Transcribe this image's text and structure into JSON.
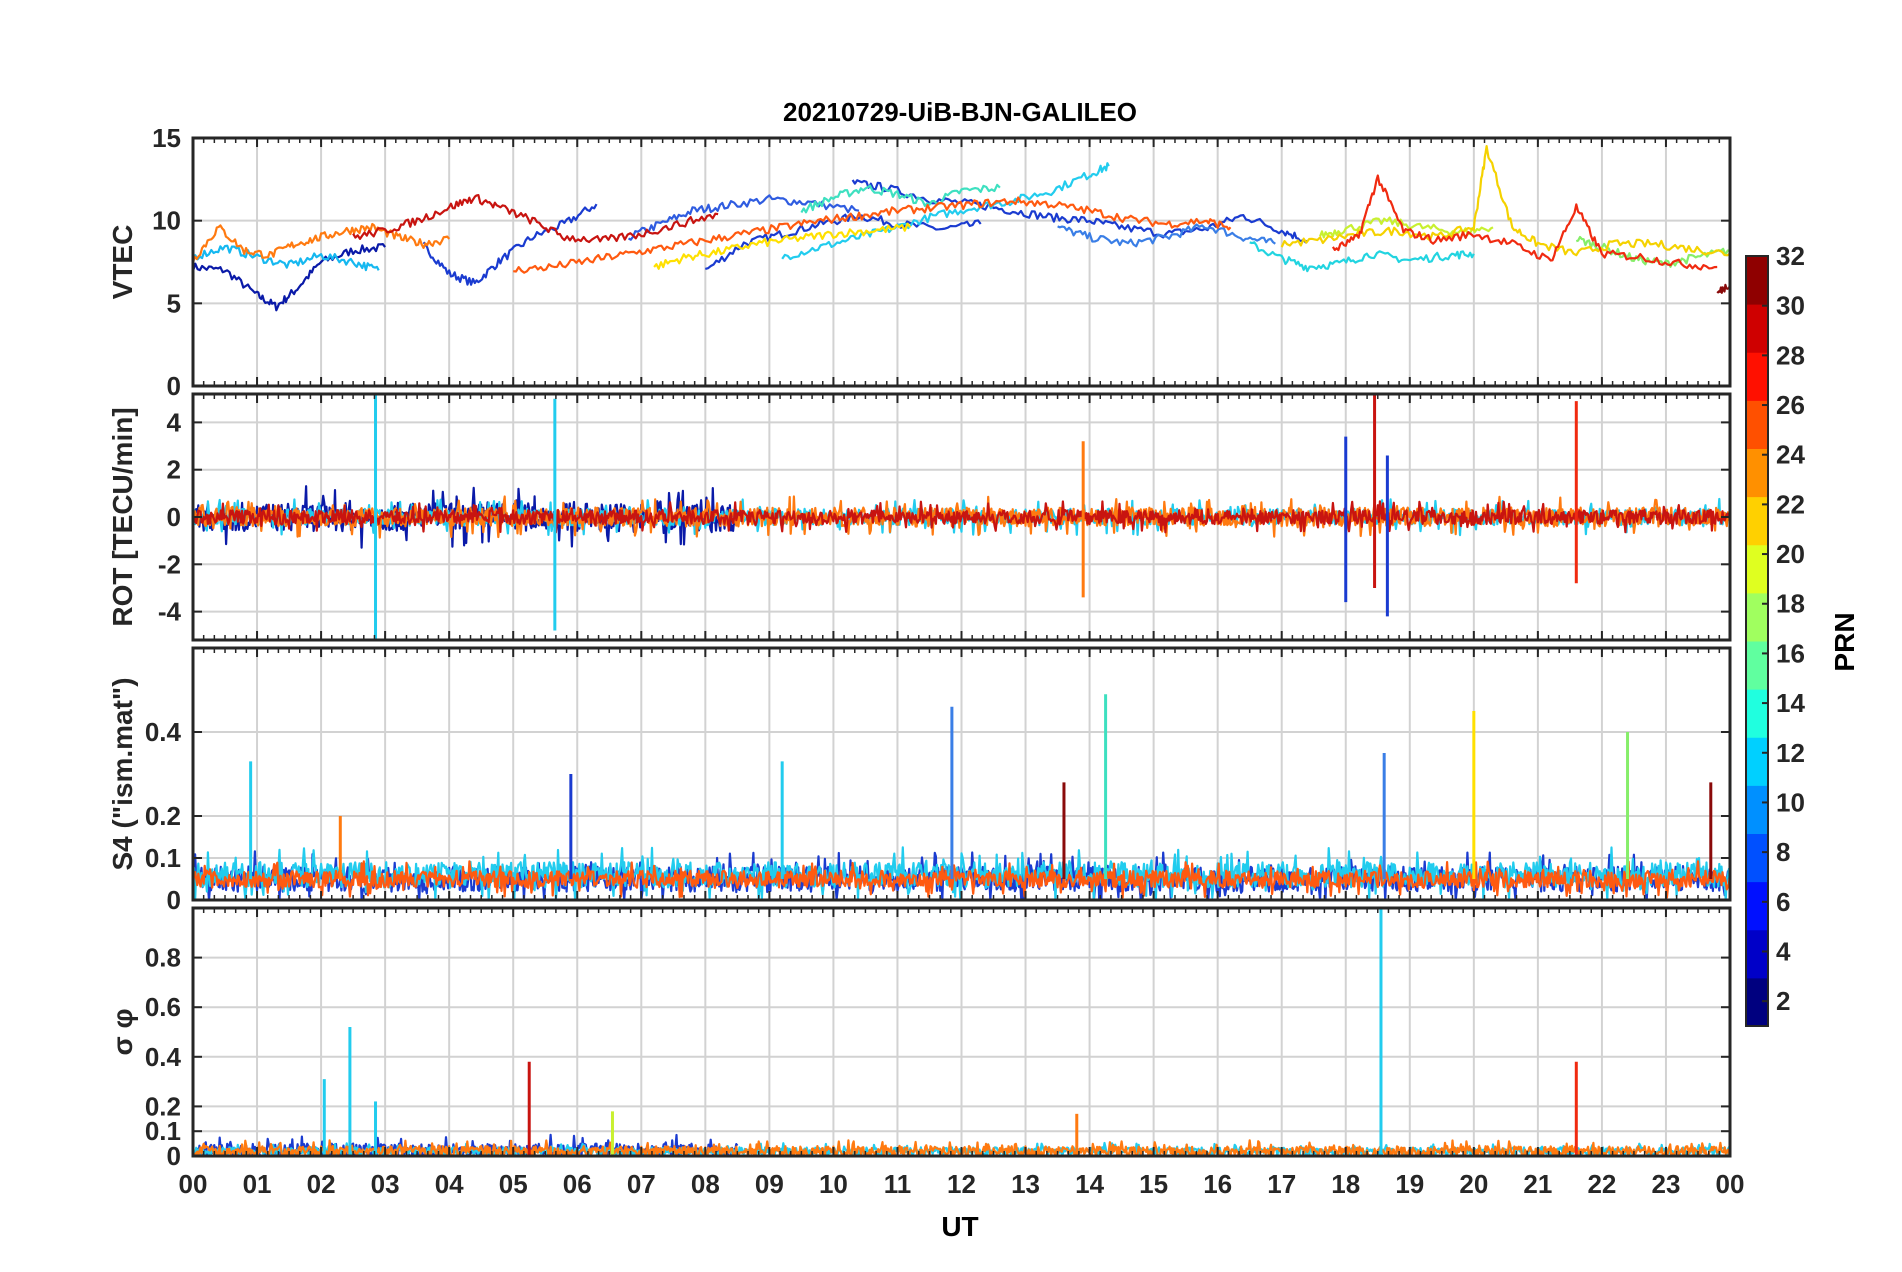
{
  "title": "20210729-UiB-BJN-GALILEO",
  "chart_data": [
    {
      "type": "line",
      "ylabel": "VTEC",
      "ylim": [
        0,
        15
      ],
      "yticks": [
        0,
        5,
        10,
        15
      ],
      "grid": true,
      "series": [
        {
          "prn": 2,
          "color": "#0a1aa8",
          "x": [
            0.0,
            0.5,
            1.0,
            1.3,
            1.6,
            2.0,
            2.5,
            3.0
          ],
          "y": [
            7.2,
            7.0,
            5.5,
            4.8,
            5.8,
            7.5,
            8.2,
            8.4
          ]
        },
        {
          "prn": 3,
          "color": "#1a3bd0",
          "x": [
            3.6,
            4.0,
            4.4,
            4.8,
            5.3,
            5.8,
            6.3
          ],
          "y": [
            8.5,
            6.8,
            6.2,
            7.6,
            9.0,
            9.8,
            11.0
          ]
        },
        {
          "prn": 4,
          "color": "#1a3bd0",
          "x": [
            8.0,
            8.6,
            9.2,
            9.8,
            10.4,
            11.0,
            11.7,
            12.3
          ],
          "y": [
            7.0,
            8.6,
            9.2,
            9.8,
            10.3,
            9.8,
            9.5,
            9.8
          ]
        },
        {
          "prn": 5,
          "color": "#2f5ce0",
          "x": [
            6.8,
            7.3,
            7.8,
            8.3,
            9.0,
            9.6,
            10.4
          ],
          "y": [
            9.0,
            9.8,
            10.6,
            10.9,
            11.3,
            11.1,
            10.6
          ]
        },
        {
          "prn": 6,
          "color": "#1a3bd0",
          "x": [
            10.3,
            10.8,
            11.5,
            12.2,
            12.8,
            13.4,
            14.0,
            14.5,
            15.2,
            15.8,
            16.4,
            17.0,
            17.4
          ],
          "y": [
            12.3,
            12.0,
            11.3,
            11.0,
            10.6,
            10.2,
            10.0,
            9.6,
            9.2,
            9.5,
            10.3,
            9.4,
            8.8
          ]
        },
        {
          "prn": 8,
          "color": "#3a7ee6",
          "x": [
            13.5,
            14.0,
            14.6,
            15.2,
            15.8,
            16.4,
            16.9
          ],
          "y": [
            9.6,
            9.0,
            8.6,
            9.0,
            9.7,
            9.0,
            8.6
          ]
        },
        {
          "prn": 11,
          "color": "#16b8f0",
          "x": [
            0.0,
            0.5,
            1.0,
            1.5,
            2.0,
            2.5,
            2.9
          ],
          "y": [
            7.8,
            8.4,
            7.8,
            7.3,
            7.9,
            7.5,
            7.0
          ]
        },
        {
          "prn": 12,
          "color": "#22ccee",
          "x": [
            9.2,
            9.8,
            10.4,
            11.0,
            11.6,
            12.2,
            12.8,
            13.4,
            14.0,
            14.3
          ],
          "y": [
            7.8,
            8.4,
            9.0,
            9.6,
            10.3,
            10.8,
            11.2,
            11.8,
            12.8,
            13.3
          ]
        },
        {
          "prn": 13,
          "color": "#22d4e0",
          "x": [
            16.5,
            17.0,
            17.4,
            17.9,
            18.4,
            19.0,
            19.6,
            20.0
          ],
          "y": [
            8.6,
            7.7,
            7.2,
            7.4,
            8.0,
            7.6,
            7.9,
            8.0
          ]
        },
        {
          "prn": 14,
          "color": "#3ee0c0",
          "x": [
            9.5,
            10.0,
            10.5,
            11.0,
            11.5,
            12.0,
            12.6
          ],
          "y": [
            10.6,
            11.4,
            12.0,
            11.6,
            11.0,
            11.8,
            12.0
          ]
        },
        {
          "prn": 17,
          "color": "#86ee6a",
          "x": [
            21.6,
            22.0,
            22.5,
            23.0,
            23.5,
            24.0
          ],
          "y": [
            8.9,
            8.4,
            7.7,
            7.4,
            7.8,
            8.2
          ]
        },
        {
          "prn": 19,
          "color": "#c8f030",
          "x": [
            17.6,
            18.0,
            18.6,
            19.2,
            19.8,
            20.3
          ],
          "y": [
            9.1,
            9.5,
            10.0,
            9.6,
            9.3,
            9.6
          ]
        },
        {
          "prn": 21,
          "color": "#ffe000",
          "x": [
            7.2,
            7.7,
            8.2,
            8.8,
            9.4,
            10.0,
            10.6,
            11.2
          ],
          "y": [
            7.2,
            7.8,
            8.1,
            8.6,
            8.9,
            9.2,
            9.4,
            9.6
          ]
        },
        {
          "prn": 21,
          "color": "#f5d200",
          "x": [
            17.0,
            17.6,
            18.2,
            18.8,
            19.4,
            20.0,
            20.2,
            20.6,
            21.0,
            21.6,
            22.2,
            22.8,
            23.4,
            24.0
          ],
          "y": [
            8.6,
            8.8,
            9.2,
            9.4,
            9.0,
            9.6,
            14.4,
            9.6,
            8.6,
            8.0,
            8.6,
            8.6,
            8.3,
            8.0
          ]
        },
        {
          "prn": 25,
          "color": "#ff7a10",
          "x": [
            0.0,
            0.4,
            0.8,
            1.2,
            1.6,
            2.0,
            2.4,
            2.8,
            3.2,
            3.6,
            4.0
          ],
          "y": [
            7.6,
            9.6,
            8.2,
            7.9,
            8.6,
            9.0,
            9.4,
            9.6,
            9.0,
            8.6,
            8.9
          ]
        },
        {
          "prn": 26,
          "color": "#ff5a10",
          "x": [
            5.0,
            5.6,
            6.2,
            6.8,
            7.4,
            8.0,
            8.6,
            9.2,
            9.8,
            10.4,
            11.0,
            11.6,
            12.2,
            12.8,
            13.4,
            14.0,
            14.6,
            15.2,
            15.8,
            16.2
          ],
          "y": [
            7.0,
            7.2,
            7.6,
            8.0,
            8.4,
            8.8,
            9.2,
            9.6,
            10.0,
            10.3,
            10.6,
            10.8,
            11.0,
            11.2,
            11.0,
            10.6,
            10.1,
            9.8,
            10.0,
            9.6
          ]
        },
        {
          "prn": 28,
          "color": "#f02a10",
          "x": [
            17.8,
            18.2,
            18.5,
            18.9,
            19.4,
            20.0,
            20.6,
            21.2,
            21.6,
            22.0,
            22.6,
            23.2,
            23.8
          ],
          "y": [
            8.2,
            9.0,
            12.6,
            9.4,
            8.8,
            9.2,
            8.6,
            7.6,
            10.8,
            8.0,
            7.8,
            7.4,
            7.2
          ]
        },
        {
          "prn": 30,
          "color": "#c81410",
          "x": [
            2.5,
            3.0,
            3.5,
            4.0,
            4.4,
            4.8,
            5.3,
            5.8,
            6.4,
            7.0,
            7.6,
            8.2
          ],
          "y": [
            9.0,
            9.4,
            10.0,
            10.8,
            11.4,
            10.8,
            10.0,
            9.0,
            8.8,
            9.2,
            9.8,
            10.4
          ]
        },
        {
          "prn": 32,
          "color": "#8a0a0a",
          "x": [
            23.8,
            24.0
          ],
          "y": [
            5.6,
            6.2
          ]
        }
      ]
    },
    {
      "type": "line",
      "ylabel": "ROT [TECU/min]",
      "ylim": [
        -5.2,
        5.2
      ],
      "yticks": [
        -4,
        -2,
        0,
        2,
        4
      ],
      "grid": true,
      "series": [
        {
          "prn": 2,
          "color": "#0a1aa8",
          "x": [
            0.0,
            8.5
          ],
          "y": [
            0,
            0
          ],
          "noise": 0.6
        },
        {
          "prn": 12,
          "color": "#22ccee",
          "x": [
            0.0,
            24.0
          ],
          "y": [
            0,
            0
          ],
          "noise": 0.35
        },
        {
          "prn": 25,
          "color": "#ff7a10",
          "x": [
            0.0,
            24.0
          ],
          "y": [
            0,
            0
          ],
          "noise": 0.4
        },
        {
          "prn": 30,
          "color": "#c81410",
          "x": [
            0.0,
            24.0
          ],
          "y": [
            0,
            0
          ],
          "noise": 0.3
        }
      ],
      "spikes": [
        {
          "color": "#22ccee",
          "x": 2.85,
          "y": [
            -5.2,
            5.2
          ]
        },
        {
          "color": "#22ccee",
          "x": 5.65,
          "y": [
            -4.8,
            5.0
          ]
        },
        {
          "color": "#ff7a10",
          "x": 13.9,
          "y": [
            -3.4,
            3.2
          ]
        },
        {
          "color": "#1a3bd0",
          "x": 18.0,
          "y": [
            -3.6,
            3.4
          ]
        },
        {
          "color": "#c81410",
          "x": 18.45,
          "y": [
            -3.0,
            5.2
          ]
        },
        {
          "color": "#1a3bd0",
          "x": 18.65,
          "y": [
            -4.2,
            2.6
          ]
        },
        {
          "color": "#f02a10",
          "x": 21.6,
          "y": [
            -2.8,
            4.9
          ]
        }
      ]
    },
    {
      "type": "line",
      "ylabel": "S4 (\"ism.mat\")",
      "ylim": [
        0,
        0.6
      ],
      "yticks": [
        0,
        0.1,
        0.2,
        0.4
      ],
      "grid": true,
      "series": [
        {
          "prn": 6,
          "color": "#1a3bd0",
          "x": [
            0.0,
            24.0
          ],
          "y": [
            0.05,
            0.05
          ],
          "noise": 0.03
        },
        {
          "prn": 12,
          "color": "#22ccee",
          "x": [
            0.0,
            24.0
          ],
          "y": [
            0.06,
            0.06
          ],
          "noise": 0.03
        },
        {
          "prn": 26,
          "color": "#ff5a10",
          "x": [
            0.0,
            24.0
          ],
          "y": [
            0.05,
            0.05
          ],
          "noise": 0.02
        }
      ],
      "spikes": [
        {
          "color": "#22ccee",
          "x": 0.9,
          "y": [
            0.05,
            0.33
          ]
        },
        {
          "color": "#ff7a10",
          "x": 2.3,
          "y": [
            0.05,
            0.2
          ]
        },
        {
          "color": "#1a3bd0",
          "x": 5.9,
          "y": [
            0.05,
            0.3
          ]
        },
        {
          "color": "#22ccee",
          "x": 9.2,
          "y": [
            0.05,
            0.33
          ]
        },
        {
          "color": "#3a7ee6",
          "x": 11.85,
          "y": [
            0.05,
            0.46
          ]
        },
        {
          "color": "#3ee0c0",
          "x": 14.25,
          "y": [
            0.05,
            0.49
          ]
        },
        {
          "color": "#8a0a0a",
          "x": 13.6,
          "y": [
            0.05,
            0.28
          ]
        },
        {
          "color": "#3a7ee6",
          "x": 18.6,
          "y": [
            0.05,
            0.35
          ]
        },
        {
          "color": "#ffe000",
          "x": 20.0,
          "y": [
            0.05,
            0.45
          ]
        },
        {
          "color": "#86ee6a",
          "x": 22.4,
          "y": [
            0.05,
            0.4
          ]
        },
        {
          "color": "#8a0a0a",
          "x": 23.7,
          "y": [
            0.05,
            0.28
          ]
        }
      ]
    },
    {
      "type": "line",
      "ylabel": "σ φ",
      "ylim": [
        0,
        1.0
      ],
      "yticks": [
        0,
        0.1,
        0.2,
        0.4,
        0.6,
        0.8
      ],
      "grid": true,
      "series": [
        {
          "prn": 6,
          "color": "#1a3bd0",
          "x": [
            0.0,
            8.5
          ],
          "y": [
            0.02,
            0.02
          ],
          "noise": 0.03
        },
        {
          "prn": 12,
          "color": "#22ccee",
          "x": [
            0.0,
            24.0
          ],
          "y": [
            0.02,
            0.02
          ],
          "noise": 0.015
        },
        {
          "prn": 25,
          "color": "#ff7a10",
          "x": [
            0.0,
            24.0
          ],
          "y": [
            0.02,
            0.02
          ],
          "noise": 0.02
        }
      ],
      "spikes": [
        {
          "color": "#22ccee",
          "x": 2.05,
          "y": [
            0.0,
            0.31
          ]
        },
        {
          "color": "#22ccee",
          "x": 2.45,
          "y": [
            0.0,
            0.52
          ]
        },
        {
          "color": "#22ccee",
          "x": 2.85,
          "y": [
            0.0,
            0.22
          ]
        },
        {
          "color": "#c81410",
          "x": 5.25,
          "y": [
            0.0,
            0.38
          ]
        },
        {
          "color": "#22ccee",
          "x": 18.55,
          "y": [
            0.0,
            1.0
          ]
        },
        {
          "color": "#f02a10",
          "x": 21.6,
          "y": [
            0.0,
            0.38
          ]
        },
        {
          "color": "#ff7a10",
          "x": 13.8,
          "y": [
            0.0,
            0.17
          ]
        },
        {
          "color": "#c8f030",
          "x": 6.55,
          "y": [
            0.0,
            0.18
          ]
        }
      ]
    }
  ],
  "xaxis": {
    "label": "UT",
    "lim": [
      0,
      24
    ],
    "ticks": [
      0,
      1,
      2,
      3,
      4,
      5,
      6,
      7,
      8,
      9,
      10,
      11,
      12,
      13,
      14,
      15,
      16,
      17,
      18,
      19,
      20,
      21,
      22,
      23,
      24
    ],
    "tick_labels": [
      "00",
      "01",
      "02",
      "03",
      "04",
      "05",
      "06",
      "07",
      "08",
      "09",
      "10",
      "11",
      "12",
      "13",
      "14",
      "15",
      "16",
      "17",
      "18",
      "19",
      "20",
      "21",
      "22",
      "23",
      "00"
    ]
  },
  "colorbar": {
    "label": "PRN",
    "range": [
      1,
      32
    ],
    "ticks": [
      2,
      4,
      6,
      8,
      10,
      12,
      14,
      16,
      18,
      20,
      22,
      24,
      26,
      28,
      30,
      32
    ],
    "colors": [
      "#00007f",
      "#0000c8",
      "#0010ff",
      "#0050ff",
      "#0090ff",
      "#00d0ff",
      "#20ffdf",
      "#60ff9f",
      "#a0ff5f",
      "#dfff20",
      "#ffd000",
      "#ff9000",
      "#ff5000",
      "#ff1000",
      "#cf0000",
      "#8f0000"
    ]
  }
}
